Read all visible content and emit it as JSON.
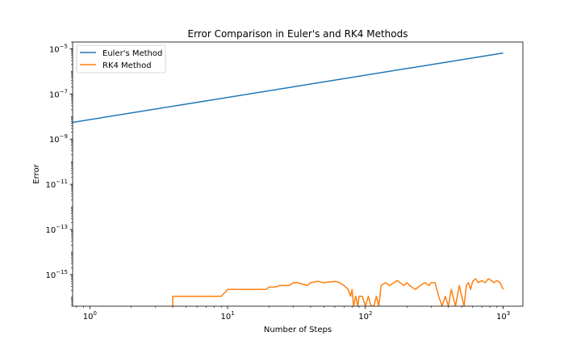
{
  "chart_data": {
    "type": "line",
    "title": "Error Comparison in Euler's and RK4 Methods",
    "xlabel": "Number of Steps",
    "ylabel": "Error",
    "x_scale": "log",
    "y_scale": "log",
    "xlim": [
      0.75,
      1390
    ],
    "ylim": [
      4e-17,
      2e-05
    ],
    "x_ticks": [
      {
        "value": 1,
        "base": "10",
        "exp": "0"
      },
      {
        "value": 10,
        "base": "10",
        "exp": "1"
      },
      {
        "value": 100,
        "base": "10",
        "exp": "2"
      },
      {
        "value": 1000,
        "base": "10",
        "exp": "3"
      }
    ],
    "y_ticks": [
      {
        "value": 1e-15,
        "base": "10",
        "exp": "−15"
      },
      {
        "value": 1e-13,
        "base": "10",
        "exp": "−13"
      },
      {
        "value": 1e-11,
        "base": "10",
        "exp": "−11"
      },
      {
        "value": 1e-09,
        "base": "10",
        "exp": "−9"
      },
      {
        "value": 1e-07,
        "base": "10",
        "exp": "−7"
      },
      {
        "value": 1e-05,
        "base": "10",
        "exp": "−5"
      }
    ],
    "legend": {
      "placement": "upper left"
    },
    "grid": false,
    "series": [
      {
        "name": "Euler's Method",
        "color": "#1f77b4",
        "x": [
          0.75,
          1000
        ],
        "y": [
          5.5e-09,
          6.5e-06
        ]
      },
      {
        "name": "RK4 Method",
        "color": "#ff7f0e",
        "x": [
          4,
          4,
          9,
          10,
          19,
          20,
          22,
          24,
          28,
          30,
          32,
          38,
          40,
          45,
          50,
          60,
          65,
          70,
          75,
          78,
          80,
          82,
          85,
          88,
          90,
          95,
          100,
          105,
          110,
          115,
          120,
          125,
          130,
          140,
          150,
          170,
          190,
          200,
          210,
          230,
          250,
          270,
          290,
          300,
          320,
          340,
          360,
          380,
          400,
          420,
          450,
          480,
          500,
          520,
          540,
          560,
          580,
          600,
          630,
          660,
          700,
          740,
          780,
          820,
          860,
          900,
          950,
          1000
        ],
        "y": [
          4e-17,
          1.1e-16,
          1.1e-16,
          2.2e-16,
          2.2e-16,
          2.8e-16,
          2.8e-16,
          3.3e-16,
          3.3e-16,
          4.4e-16,
          4.4e-16,
          3.3e-16,
          4.4e-16,
          5e-16,
          4.4e-16,
          5e-16,
          4.4e-16,
          3.3e-16,
          2.2e-16,
          1.1e-16,
          2.2e-16,
          4e-17,
          1.1e-16,
          4e-17,
          1.1e-16,
          1.1e-16,
          4e-17,
          1.1e-16,
          4e-17,
          4e-17,
          1.1e-16,
          4e-17,
          3.3e-16,
          4.4e-16,
          3.3e-16,
          5.5e-16,
          3.3e-16,
          4.4e-16,
          3.3e-16,
          2.2e-16,
          3.3e-16,
          4.4e-16,
          3.3e-16,
          4.4e-16,
          4.4e-16,
          1.1e-16,
          4e-17,
          1.1e-16,
          4e-17,
          2.2e-16,
          4e-17,
          3.3e-16,
          1.1e-16,
          4e-17,
          3.3e-16,
          4.4e-16,
          2.2e-16,
          5e-16,
          6.6e-16,
          4.4e-16,
          5.5e-16,
          4.4e-16,
          6.6e-16,
          5.5e-16,
          4.4e-16,
          5.5e-16,
          4.4e-16,
          2.2e-16
        ]
      }
    ]
  }
}
